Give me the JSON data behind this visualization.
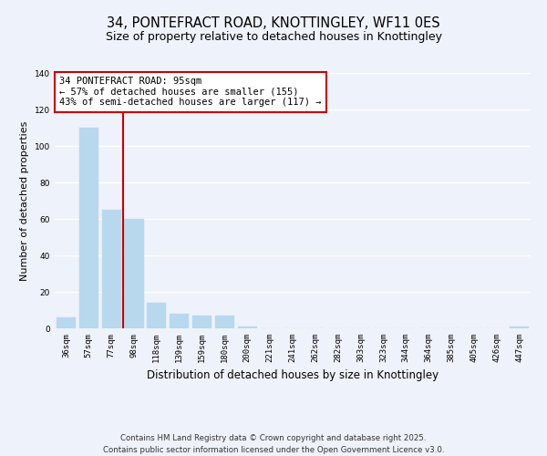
{
  "title": "34, PONTEFRACT ROAD, KNOTTINGLEY, WF11 0ES",
  "subtitle": "Size of property relative to detached houses in Knottingley",
  "xlabel": "Distribution of detached houses by size in Knottingley",
  "ylabel": "Number of detached properties",
  "categories": [
    "36sqm",
    "57sqm",
    "77sqm",
    "98sqm",
    "118sqm",
    "139sqm",
    "159sqm",
    "180sqm",
    "200sqm",
    "221sqm",
    "241sqm",
    "262sqm",
    "282sqm",
    "303sqm",
    "323sqm",
    "344sqm",
    "364sqm",
    "385sqm",
    "405sqm",
    "426sqm",
    "447sqm"
  ],
  "values": [
    6,
    110,
    65,
    60,
    14,
    8,
    7,
    7,
    1,
    0,
    0,
    0,
    0,
    0,
    0,
    0,
    0,
    0,
    0,
    0,
    1
  ],
  "bar_color": "#b8d8ed",
  "bar_edge_color": "#b8d8ed",
  "vline_color": "#cc0000",
  "annotation_title": "34 PONTEFRACT ROAD: 95sqm",
  "annotation_line1": "← 57% of detached houses are smaller (155)",
  "annotation_line2": "43% of semi-detached houses are larger (117) →",
  "annotation_box_color": "#ffffff",
  "annotation_box_edge": "#cc0000",
  "ylim": [
    0,
    140
  ],
  "yticks": [
    0,
    20,
    40,
    60,
    80,
    100,
    120,
    140
  ],
  "footer_line1": "Contains HM Land Registry data © Crown copyright and database right 2025.",
  "footer_line2": "Contains public sector information licensed under the Open Government Licence v3.0.",
  "background_color": "#eef2fb",
  "grid_color": "#ffffff",
  "title_fontsize": 10.5,
  "subtitle_fontsize": 9,
  "axis_label_fontsize": 8,
  "tick_fontsize": 6.5,
  "annotation_fontsize": 7.5,
  "footer_fontsize": 6.2
}
